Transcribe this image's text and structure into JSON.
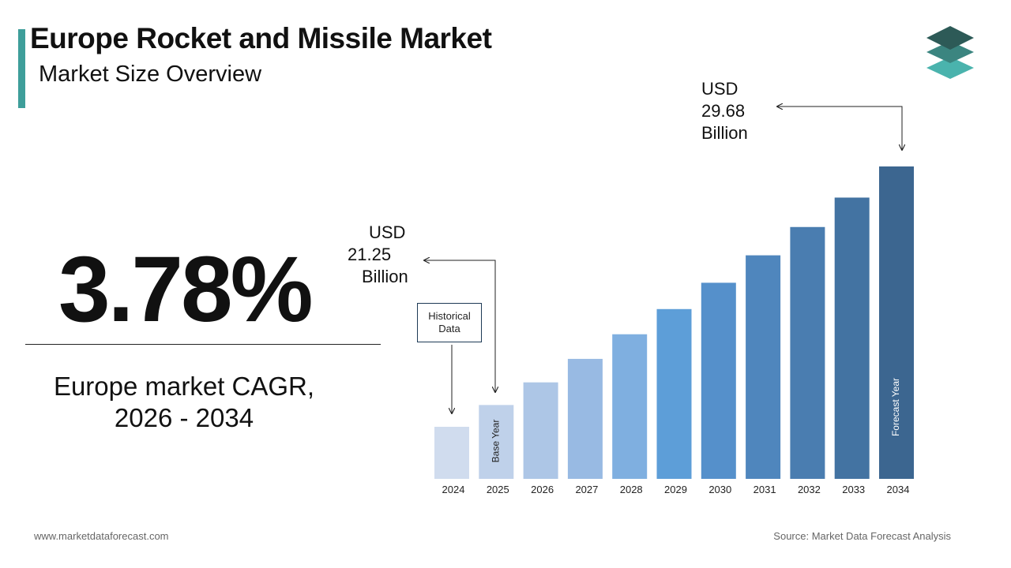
{
  "header": {
    "title": "Europe Rocket and Missile Market",
    "subtitle": "Market Size Overview"
  },
  "cagr": {
    "value": "3.78%",
    "caption_line1": "Europe market CAGR,",
    "caption_line2": "2026 - 2034"
  },
  "callouts": {
    "start": {
      "line1": "USD",
      "line2": "21.25",
      "line3": "Billion"
    },
    "end": {
      "line1": "USD",
      "line2": "29.68",
      "line3": "Billion"
    },
    "historical_line1": "Historical",
    "historical_line2": "Data"
  },
  "footer": {
    "website": "www.marketdataforecast.com",
    "source": "Source: Market Data Forecast Analysis"
  },
  "chart_data": {
    "type": "bar",
    "categories": [
      "2024",
      "2025",
      "2026",
      "2027",
      "2028",
      "2029",
      "2030",
      "2031",
      "2032",
      "2033",
      "2034"
    ],
    "values": [
      20.48,
      21.25,
      22.05,
      22.88,
      23.75,
      24.64,
      25.57,
      26.54,
      27.54,
      28.58,
      29.68
    ],
    "in_bar_labels": {
      "2025": "Base Year",
      "2034": "Forecast Year"
    },
    "colors": [
      "#d0dcee",
      "#bfd1ea",
      "#adc6e6",
      "#98bae3",
      "#7fafe0",
      "#5d9ed8",
      "#5590cb",
      "#4f86bd",
      "#4a7db0",
      "#4373a2",
      "#3c6690"
    ]
  }
}
